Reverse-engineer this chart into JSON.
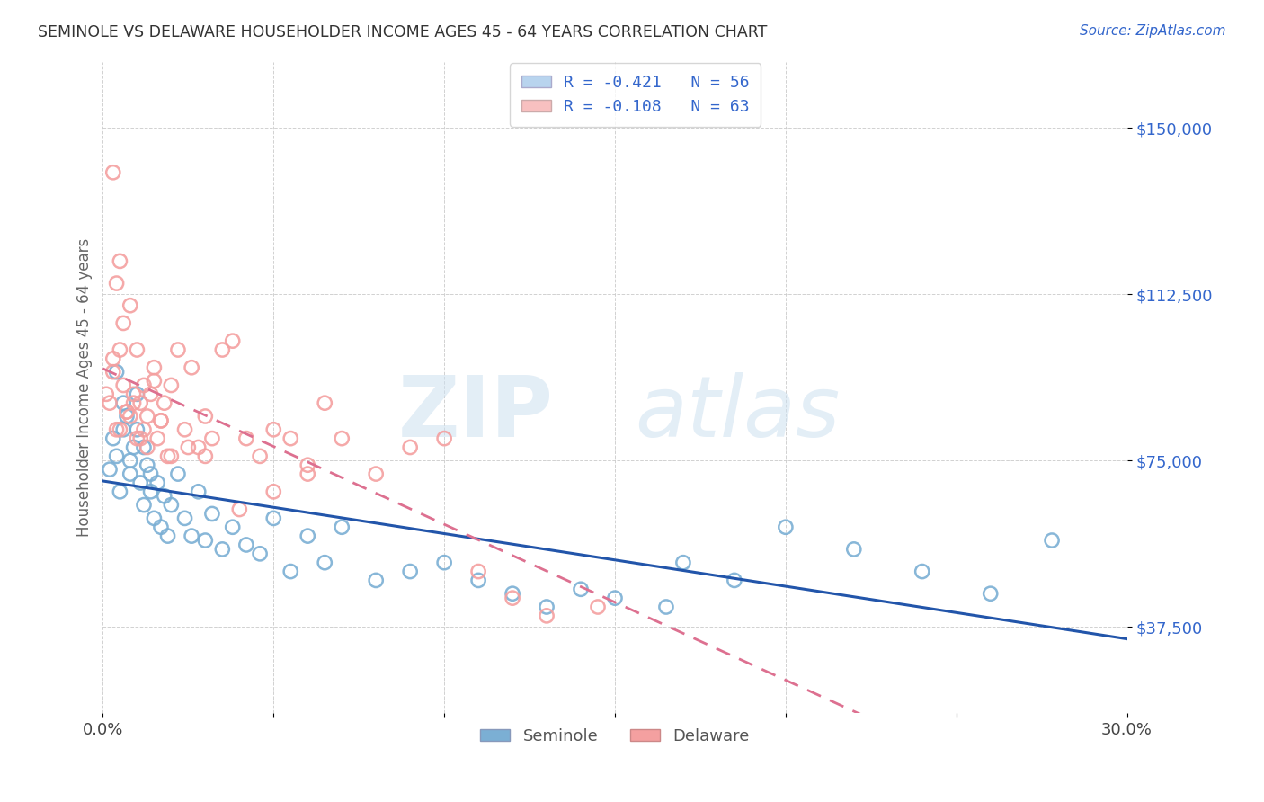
{
  "title": "SEMINOLE VS DELAWARE HOUSEHOLDER INCOME AGES 45 - 64 YEARS CORRELATION CHART",
  "source": "Source: ZipAtlas.com",
  "ylabel": "Householder Income Ages 45 - 64 years",
  "xlim": [
    0.0,
    0.3
  ],
  "ylim": [
    18000,
    165000
  ],
  "yticks": [
    37500,
    75000,
    112500,
    150000
  ],
  "ytick_labels": [
    "$37,500",
    "$75,000",
    "$112,500",
    "$150,000"
  ],
  "seminole_color": "#7bafd4",
  "delaware_color": "#f4a0a0",
  "seminole_line_color": "#2255aa",
  "delaware_line_color": "#dd7090",
  "background_color": "#ffffff",
  "legend_label1": "R = -0.421   N = 56",
  "legend_label2": "R = -0.108   N = 63",
  "legend_color1": "#b8d4ee",
  "legend_color2": "#f8c0c0",
  "bottom_label1": "Seminole",
  "bottom_label2": "Delaware",
  "seminole_x": [
    0.002,
    0.003,
    0.004,
    0.005,
    0.006,
    0.007,
    0.008,
    0.009,
    0.01,
    0.011,
    0.012,
    0.013,
    0.014,
    0.015,
    0.016,
    0.017,
    0.018,
    0.019,
    0.02,
    0.022,
    0.024,
    0.026,
    0.028,
    0.03,
    0.032,
    0.035,
    0.038,
    0.042,
    0.046,
    0.05,
    0.055,
    0.06,
    0.065,
    0.07,
    0.08,
    0.09,
    0.1,
    0.11,
    0.12,
    0.13,
    0.14,
    0.15,
    0.165,
    0.17,
    0.185,
    0.2,
    0.22,
    0.24,
    0.26,
    0.278,
    0.004,
    0.006,
    0.008,
    0.01,
    0.012,
    0.014
  ],
  "seminole_y": [
    73000,
    80000,
    76000,
    68000,
    82000,
    85000,
    72000,
    78000,
    90000,
    70000,
    65000,
    74000,
    68000,
    62000,
    70000,
    60000,
    67000,
    58000,
    65000,
    72000,
    62000,
    58000,
    68000,
    57000,
    63000,
    55000,
    60000,
    56000,
    54000,
    62000,
    50000,
    58000,
    52000,
    60000,
    48000,
    50000,
    52000,
    48000,
    45000,
    42000,
    46000,
    44000,
    42000,
    52000,
    48000,
    60000,
    55000,
    50000,
    45000,
    57000,
    95000,
    88000,
    75000,
    82000,
    78000,
    72000
  ],
  "delaware_x": [
    0.001,
    0.002,
    0.003,
    0.004,
    0.005,
    0.006,
    0.007,
    0.008,
    0.009,
    0.01,
    0.011,
    0.012,
    0.013,
    0.014,
    0.015,
    0.016,
    0.017,
    0.018,
    0.019,
    0.02,
    0.022,
    0.024,
    0.026,
    0.028,
    0.03,
    0.032,
    0.035,
    0.038,
    0.042,
    0.046,
    0.05,
    0.055,
    0.06,
    0.065,
    0.07,
    0.08,
    0.09,
    0.1,
    0.11,
    0.12,
    0.13,
    0.145,
    0.003,
    0.005,
    0.007,
    0.009,
    0.011,
    0.013,
    0.015,
    0.017,
    0.02,
    0.025,
    0.03,
    0.04,
    0.05,
    0.06,
    0.004,
    0.006,
    0.008,
    0.01,
    0.012,
    0.003,
    0.005
  ],
  "delaware_y": [
    90000,
    88000,
    95000,
    82000,
    100000,
    92000,
    86000,
    85000,
    90000,
    80000,
    88000,
    82000,
    78000,
    90000,
    96000,
    80000,
    84000,
    88000,
    76000,
    92000,
    100000,
    82000,
    96000,
    78000,
    85000,
    80000,
    100000,
    102000,
    80000,
    76000,
    82000,
    80000,
    74000,
    88000,
    80000,
    72000,
    78000,
    80000,
    50000,
    44000,
    40000,
    42000,
    98000,
    82000,
    86000,
    88000,
    80000,
    85000,
    93000,
    84000,
    76000,
    78000,
    76000,
    64000,
    68000,
    72000,
    115000,
    106000,
    110000,
    100000,
    92000,
    140000,
    120000
  ]
}
